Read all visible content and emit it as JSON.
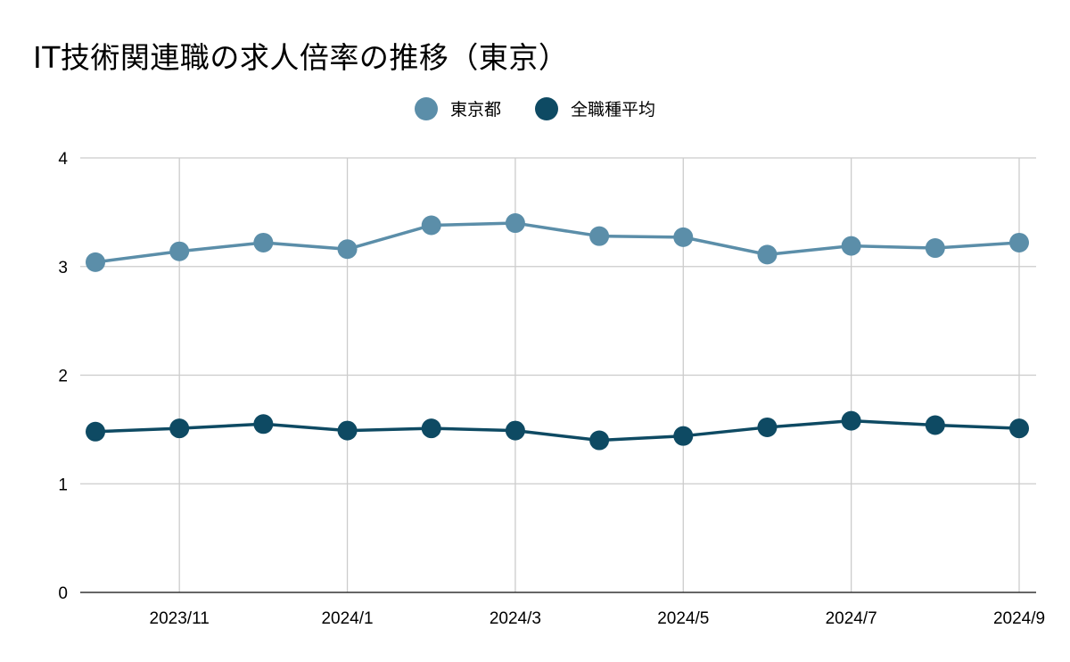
{
  "chart_data": {
    "type": "line",
    "title": "IT技術関連職の求人倍率の推移（東京）",
    "xlabel": "",
    "ylabel": "",
    "ylim": [
      0,
      4
    ],
    "yticks": [
      0,
      1,
      2,
      3,
      4
    ],
    "x": [
      "2023/10",
      "2023/11",
      "2023/12",
      "2024/1",
      "2024/2",
      "2024/3",
      "2024/4",
      "2024/5",
      "2024/6",
      "2024/7",
      "2024/8",
      "2024/9"
    ],
    "xtick_labels": [
      "2023/11",
      "2024/1",
      "2024/3",
      "2024/5",
      "2024/7",
      "2024/9"
    ],
    "grid": true,
    "legend_position": "top-center",
    "series": [
      {
        "name": "東京都",
        "color": "#5b8ea9",
        "values": [
          3.04,
          3.14,
          3.22,
          3.16,
          3.38,
          3.4,
          3.28,
          3.27,
          3.11,
          3.19,
          3.17,
          3.22
        ]
      },
      {
        "name": "全職種平均",
        "color": "#0e4a63",
        "values": [
          1.48,
          1.51,
          1.55,
          1.49,
          1.51,
          1.49,
          1.4,
          1.44,
          1.52,
          1.58,
          1.54,
          1.51
        ]
      }
    ]
  }
}
